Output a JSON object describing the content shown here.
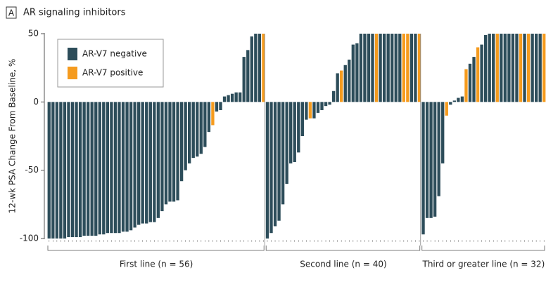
{
  "chart_data": {
    "type": "waterfall",
    "panel": "A",
    "title": "AR signaling inhibitors",
    "y_label": "12-wk PSA Change From Baseline, %",
    "ylim": [
      -100,
      50
    ],
    "yticks": [
      50,
      0,
      -50,
      -100
    ],
    "series": [
      {
        "name": "AR-V7 negative",
        "color": "#2d4d5a"
      },
      {
        "name": "AR-V7 positive",
        "color": "#f59b1e"
      }
    ],
    "groups": [
      {
        "label": "First line (n = 56)",
        "values": [
          [
            -100,
            -100,
            -100,
            -100,
            -100,
            -99,
            -99,
            -99,
            -99,
            -98,
            -98,
            -98,
            -98,
            -97,
            -97,
            -96,
            -96,
            -96,
            -96,
            -95,
            -95,
            -94,
            -92,
            -90,
            -89,
            -89,
            -88,
            -88,
            -85,
            -80,
            -75,
            -73,
            -73,
            -72,
            -58,
            -50,
            -45,
            -41,
            -40,
            -38,
            -33,
            -22,
            null,
            -7,
            -6,
            4,
            5,
            6,
            7,
            7,
            33,
            38,
            48,
            50,
            50,
            null
          ],
          [
            null,
            null,
            null,
            null,
            null,
            null,
            null,
            null,
            null,
            null,
            null,
            null,
            null,
            null,
            null,
            null,
            null,
            null,
            null,
            null,
            null,
            null,
            null,
            null,
            null,
            null,
            null,
            null,
            null,
            null,
            null,
            null,
            null,
            null,
            null,
            null,
            null,
            null,
            null,
            null,
            null,
            null,
            -17,
            null,
            null,
            null,
            null,
            null,
            null,
            null,
            null,
            null,
            null,
            null,
            null,
            50
          ]
        ]
      },
      {
        "label": "Second line (n = 40)",
        "values": [
          [
            -100,
            -96,
            -91,
            -87,
            -75,
            -60,
            -45,
            -44,
            -37,
            -25,
            -13,
            null,
            -12,
            -8,
            -6,
            -3,
            -2,
            8,
            21,
            null,
            27,
            31,
            42,
            43,
            50,
            50,
            50,
            50,
            null,
            50,
            50,
            50,
            50,
            50,
            50,
            null,
            null,
            50,
            50,
            null
          ],
          [
            null,
            null,
            null,
            null,
            null,
            null,
            null,
            null,
            null,
            null,
            null,
            -12,
            null,
            null,
            null,
            null,
            null,
            null,
            null,
            23,
            null,
            null,
            null,
            null,
            null,
            null,
            null,
            null,
            50,
            null,
            null,
            null,
            null,
            null,
            null,
            50,
            50,
            null,
            null,
            50
          ]
        ]
      },
      {
        "label": "Third or greater line (n = 32)",
        "values": [
          [
            -97,
            -85,
            -85,
            -84,
            -69,
            -45,
            null,
            -2,
            1,
            3,
            4,
            null,
            28,
            33,
            null,
            42,
            49,
            50,
            50,
            null,
            50,
            50,
            50,
            50,
            50,
            null,
            50,
            null,
            50,
            50,
            50,
            null
          ],
          [
            null,
            null,
            null,
            null,
            null,
            null,
            -10,
            null,
            null,
            null,
            null,
            24,
            null,
            null,
            40,
            null,
            null,
            null,
            null,
            50,
            null,
            null,
            null,
            null,
            null,
            50,
            null,
            50,
            null,
            null,
            null,
            50
          ]
        ]
      }
    ]
  }
}
